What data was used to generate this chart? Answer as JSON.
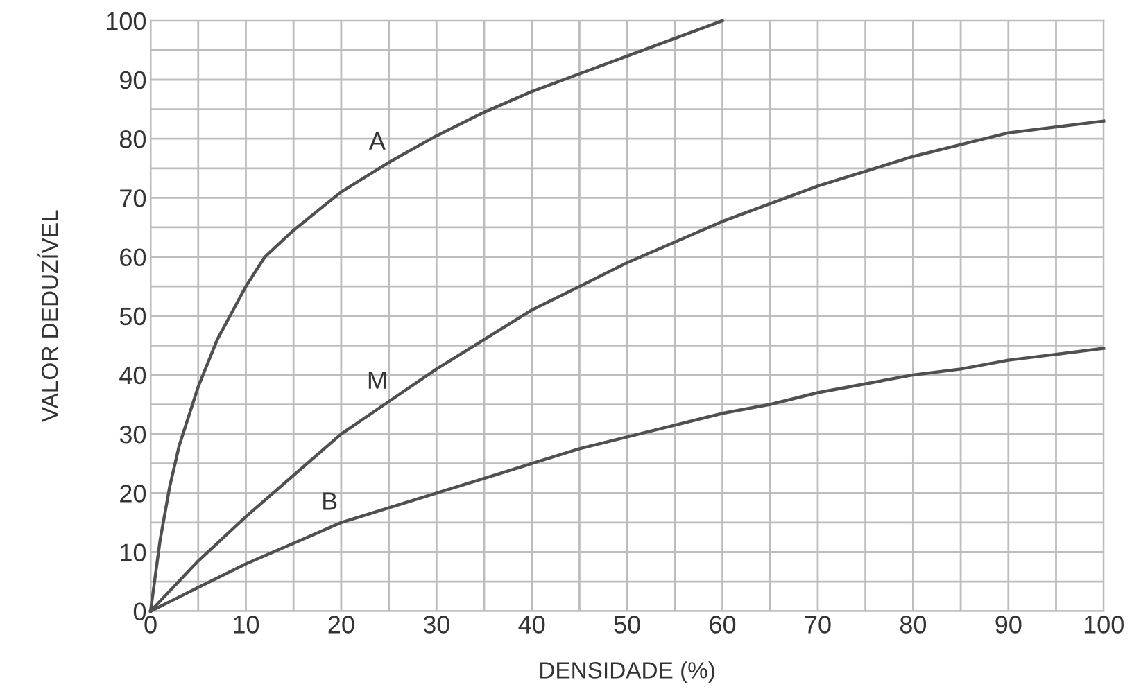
{
  "chart_data": {
    "type": "line",
    "xlabel": "DENSIDADE (%)",
    "ylabel": "VALOR DEDUZÍVEL",
    "series": [
      {
        "name": "A",
        "color": "#505050",
        "x": [
          0,
          1,
          2,
          3,
          5,
          7,
          9,
          10,
          12,
          15,
          20,
          25,
          30,
          35,
          40,
          45,
          50,
          55,
          60
        ],
        "values": [
          0,
          12,
          21,
          28,
          38,
          46,
          52,
          55,
          60,
          64.5,
          71,
          76,
          80.5,
          84.5,
          88,
          91,
          94,
          97,
          100
        ]
      },
      {
        "name": "M",
        "color": "#505050",
        "x": [
          0,
          5,
          10,
          15,
          20,
          25,
          30,
          35,
          40,
          45,
          50,
          55,
          60,
          65,
          70,
          75,
          80,
          85,
          90,
          95,
          100
        ],
        "values": [
          0,
          8.5,
          16,
          23,
          30,
          35.5,
          41,
          46,
          51,
          55,
          59,
          62.5,
          66,
          69,
          72,
          74.5,
          77,
          79,
          81,
          82,
          83
        ]
      },
      {
        "name": "B",
        "color": "#505050",
        "x": [
          0,
          5,
          10,
          15,
          20,
          25,
          30,
          35,
          40,
          45,
          50,
          55,
          60,
          65,
          70,
          75,
          80,
          85,
          90,
          95,
          100
        ],
        "values": [
          0,
          4,
          8,
          11.5,
          15,
          17.5,
          20,
          22.5,
          25,
          27.5,
          29.5,
          31.5,
          33.5,
          35,
          37,
          38.5,
          40,
          41,
          42.5,
          43.5,
          44.5
        ]
      }
    ],
    "xlim": [
      0,
      100
    ],
    "ylim": [
      0,
      100
    ],
    "xticks": [
      0,
      {
        "value": 5,
        "label": null
      },
      10,
      {
        "value": 15,
        "label": null
      },
      20,
      {
        "value": 25,
        "label": null
      },
      30,
      {
        "value": 35,
        "label": null
      },
      40,
      {
        "value": 45,
        "label": null
      },
      50,
      {
        "value": 55,
        "label": null
      },
      60,
      {
        "value": 65,
        "label": null
      },
      70,
      {
        "value": 75,
        "label": null
      },
      80,
      {
        "value": 85,
        "label": null
      },
      90,
      {
        "value": 95,
        "label": null
      },
      100
    ],
    "yticks": [
      0,
      {
        "value": 5,
        "label": null
      },
      10,
      {
        "value": 15,
        "label": null
      },
      20,
      {
        "value": 25,
        "label": null
      },
      30,
      {
        "value": 35,
        "label": null
      },
      40,
      {
        "value": 45,
        "label": null
      },
      50,
      {
        "value": 55,
        "label": null
      },
      60,
      {
        "value": 65,
        "label": null
      },
      70,
      {
        "value": 75,
        "label": null
      },
      80,
      {
        "value": 85,
        "label": null
      },
      90,
      {
        "value": 95,
        "label": null
      },
      100
    ],
    "grid": true,
    "marker": "none",
    "line_style": "solid"
  }
}
